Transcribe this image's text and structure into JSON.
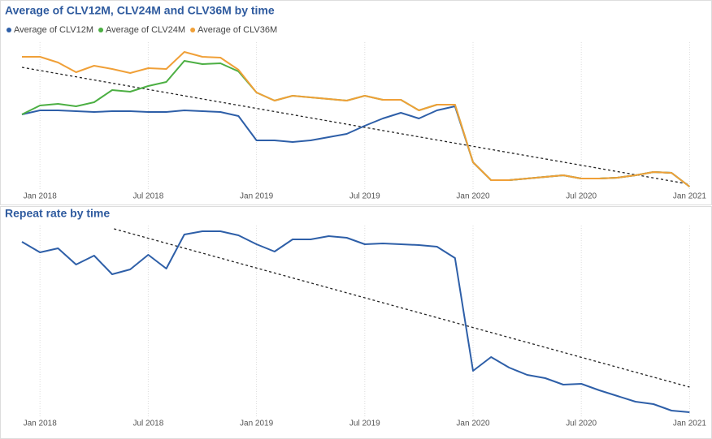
{
  "chart_data": [
    {
      "type": "line",
      "title": "Average of CLV12M, CLV24M and CLV36M by time",
      "categories": [
        null,
        "Jan 2018",
        null,
        null,
        null,
        null,
        null,
        "Jul 2018",
        null,
        null,
        null,
        null,
        null,
        "Jan 2019",
        null,
        null,
        null,
        null,
        null,
        "Jul 2019",
        null,
        null,
        null,
        null,
        null,
        "Jan 2020",
        null,
        null,
        null,
        null,
        null,
        "Jul 2020",
        null,
        null,
        null,
        null,
        null,
        "Jan 2021"
      ],
      "ylim": [
        0,
        200
      ],
      "series": [
        {
          "name": "Average of CLV12M",
          "color": "#2e5fa8",
          "values": [
            99,
            104,
            104,
            103,
            102,
            103,
            103,
            102,
            102,
            104,
            103,
            102,
            97,
            67,
            67,
            65,
            67,
            71,
            75,
            85,
            94,
            101,
            94,
            104,
            109,
            40,
            18,
            18,
            20,
            22,
            24,
            20,
            20,
            21,
            24,
            28,
            27,
            10
          ]
        },
        {
          "name": "Average of CLV24M",
          "color": "#4caf43",
          "values": [
            99,
            110,
            112,
            109,
            114,
            129,
            127,
            134,
            139,
            165,
            161,
            162,
            152,
            126,
            116,
            122,
            120,
            118,
            116,
            122,
            117,
            117,
            104,
            111,
            111,
            40,
            18,
            18,
            20,
            22,
            24,
            20,
            20,
            21,
            24,
            28,
            27,
            10
          ]
        },
        {
          "name": "Average of CLV36M",
          "color": "#f0a038",
          "values": [
            170,
            170,
            163,
            151,
            159,
            155,
            150,
            156,
            155,
            176,
            170,
            169,
            154,
            126,
            116,
            122,
            120,
            118,
            116,
            122,
            117,
            117,
            104,
            111,
            111,
            40,
            18,
            18,
            20,
            22,
            24,
            20,
            20,
            21,
            24,
            28,
            27,
            10
          ]
        }
      ],
      "trend": {
        "x": [
          0,
          37
        ],
        "values": [
          157,
          13
        ]
      }
    },
    {
      "type": "line",
      "title": "Repeat rate by time",
      "categories": [
        null,
        "Jan 2018",
        null,
        null,
        null,
        null,
        null,
        "Jul 2018",
        null,
        null,
        null,
        null,
        null,
        "Jan 2019",
        null,
        null,
        null,
        null,
        null,
        "Jul 2019",
        null,
        null,
        null,
        null,
        null,
        "Jan 2020",
        null,
        null,
        null,
        null,
        null,
        "Jul 2020",
        null,
        null,
        null,
        null,
        null,
        "Jan 2021"
      ],
      "ylim": [
        0,
        260
      ],
      "series": [
        {
          "color": "#2e5fa8",
          "values": [
            222,
            209,
            214,
            194,
            205,
            182,
            188,
            206,
            189,
            231,
            235,
            235,
            230,
            219,
            210,
            225,
            225,
            229,
            227,
            219,
            220,
            219,
            218,
            216,
            202,
            63,
            80,
            67,
            58,
            54,
            46,
            47,
            39,
            32,
            25,
            22,
            14,
            12
          ]
        }
      ],
      "trend": {
        "x": [
          5.1,
          37
        ],
        "values": [
          238,
          43
        ]
      }
    }
  ]
}
